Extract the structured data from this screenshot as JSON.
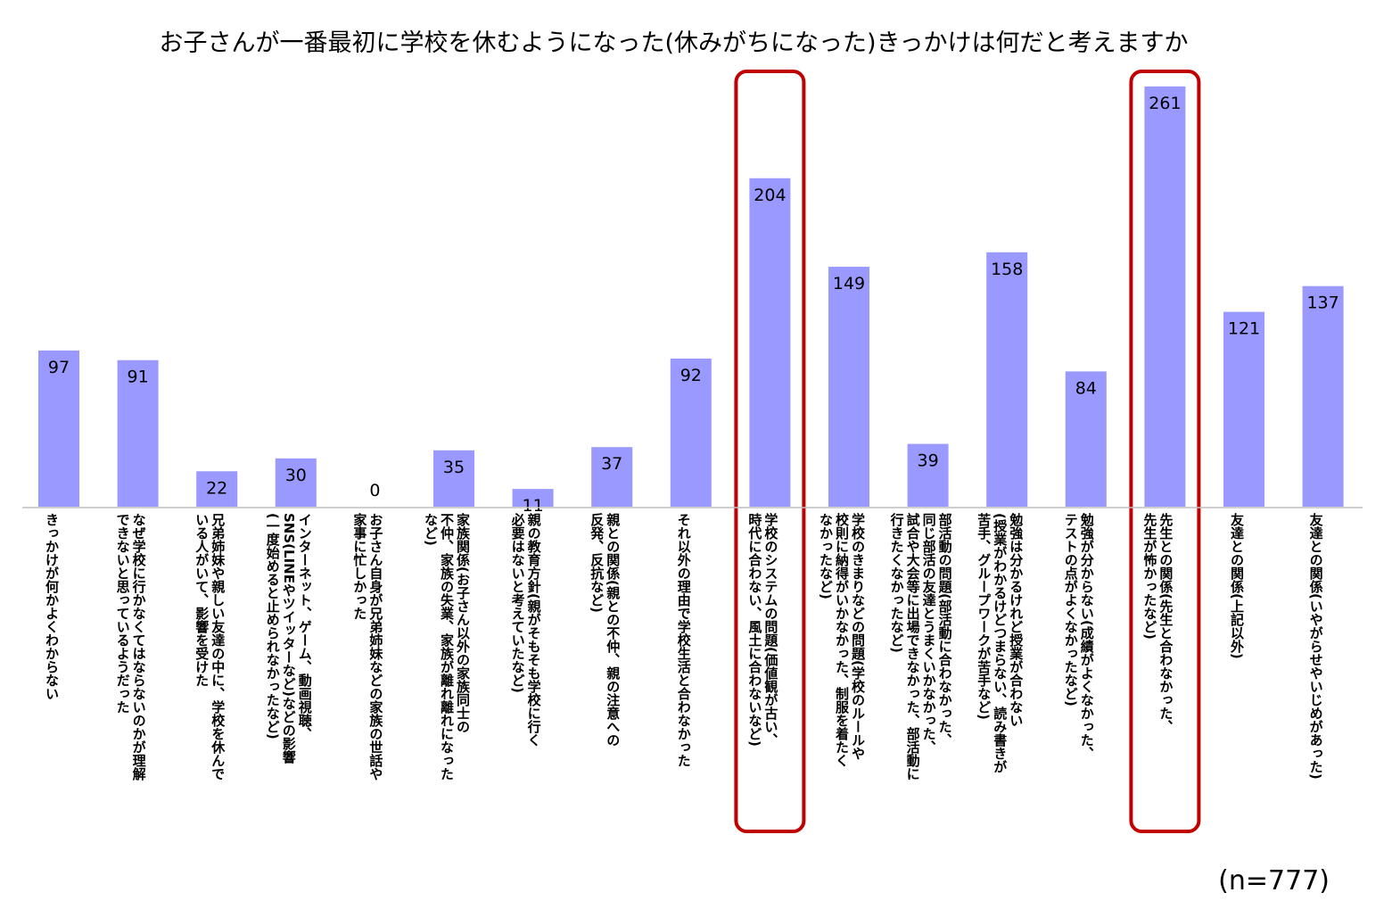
{
  "chart_data": {
    "type": "bar",
    "title": "お子さんが一番最初に学校を休むようになった(休みがちになった)きっかけは何だと考えますか",
    "note": "(n=777)",
    "categories": [
      "きっかけが何かよくわからない",
      "なぜ学校に行かなくてはならないのかが理解\nできないと思っているようだった",
      "兄弟姉妹や親しい友達の中に、学校を休んで\nいる人がいて、影響を受けた",
      "インターネット、ゲーム、動画視聴、\nSNS(LINEやツイッターなど)などの影響\n(一度始めると止められなかったなど)",
      "お子さん自身が兄弟姉妹などの家族の世話や\n家事に忙しかった",
      "家族関係(お子さん以外の家族同士の\n不仲、家族の失業、家族が離れ離れになった\nなど)",
      "親の教育方針(親がそもそも学校に行く\n必要はないと考えていたなど)",
      "親との関係(親との不仲、親の注意への\n反発、反抗など)",
      "それ以外の理由で学校生活と合わなかった",
      "学校のシステムの問題(価値観が古い、\n時代に合わない、風土に合わないなど)",
      "学校のきまりなどの問題(学校のルールや\n校則に納得がいかなかった、制服を着たく\nなかったなど)",
      "部活動の問題(部活動に合わなかった、\n同じ部活の友達とうまくいかなかった、\n試合や大会等に出場できなかった、部活動に\n行きたくなかったなど)",
      "勉強は分かるけれど授業が合わない\n(授業がわかるけどつまらない、読み書きが\n苦手、グループワークが苦手など)",
      "勉強が分からない(成績がよくなかった、\nテストの点がよくなかったなど)",
      "先生との関係(先生と合わなかった、\n先生が怖かったなど)",
      "友達との関係(上記以外)",
      "友達との関係(いやがらせやいじめがあった)"
    ],
    "values": [
      97,
      91,
      22,
      30,
      0,
      35,
      11,
      37,
      92,
      204,
      149,
      39,
      158,
      84,
      261,
      121,
      137
    ],
    "value_labels": [
      "97",
      "91",
      "22",
      "30",
      "0",
      "35",
      "11",
      "37",
      "92",
      "204",
      "149",
      "39",
      "158",
      "84",
      "261",
      "121",
      "137"
    ],
    "highlighted": [
      9,
      14
    ],
    "ylim": [
      0,
      290
    ],
    "grid": false,
    "legend": "none",
    "colors": {
      "bar": "#9999ff",
      "highlight": "#c00000",
      "axis": "#bfbfbf"
    }
  }
}
